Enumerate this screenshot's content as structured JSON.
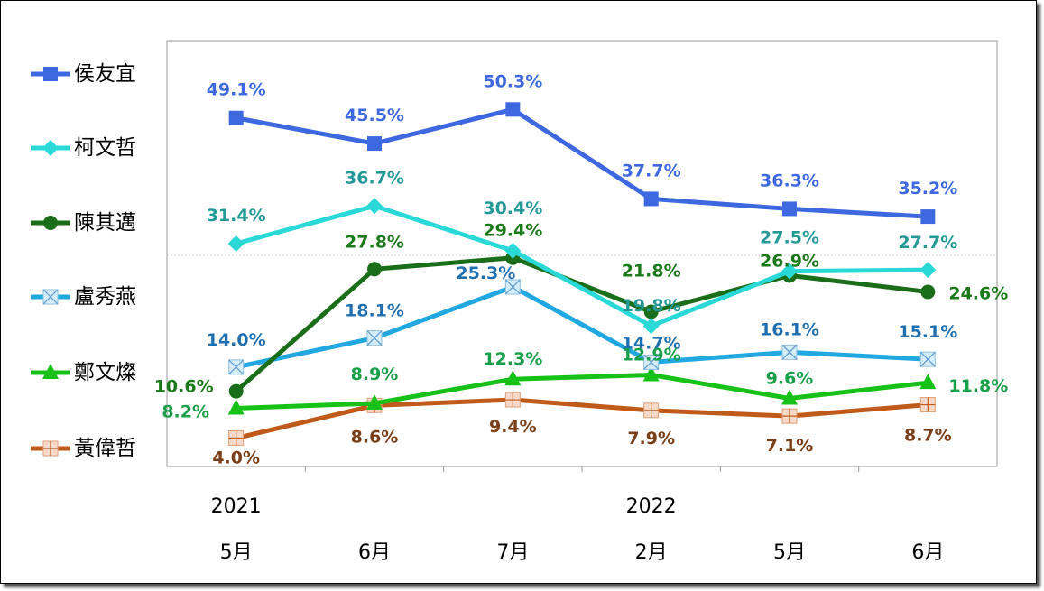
{
  "chart_data": {
    "type": "line",
    "title": "",
    "xlabel": "",
    "ylabel": "",
    "ylim": [
      0,
      60
    ],
    "grid": "vertical separators between categories",
    "legend_placement": "left",
    "year_labels": [
      {
        "text": "2021",
        "index": 0
      },
      {
        "text": "2022",
        "index": 3
      }
    ],
    "categories": [
      "5月",
      "6月",
      "7月",
      "2月",
      "5月",
      "6月"
    ],
    "series": [
      {
        "name": "侯友宜",
        "color": "#3d68e0",
        "label_color": "#3d68e0",
        "marker": "square",
        "values": [
          49.1,
          45.5,
          50.3,
          37.7,
          36.3,
          35.2
        ],
        "labels": [
          "49.1%",
          "45.5%",
          "50.3%",
          "37.7%",
          "36.3%",
          "35.2%"
        ]
      },
      {
        "name": "柯文哲",
        "color": "#2bd8d8",
        "label_color": "#239a98",
        "marker": "diamond",
        "values": [
          31.4,
          36.7,
          30.4,
          19.8,
          27.5,
          27.7
        ],
        "labels": [
          "31.4%",
          "36.7%",
          "30.4%",
          "19.8%",
          "27.5%",
          "27.7%"
        ]
      },
      {
        "name": "陳其邁",
        "color": "#1a6e1a",
        "label_color": "#1a7a1a",
        "marker": "circle",
        "values": [
          10.6,
          27.8,
          29.4,
          21.8,
          26.9,
          24.6
        ],
        "labels": [
          "10.6%",
          "27.8%",
          "29.4%",
          "21.8%",
          "26.9%",
          "24.6%"
        ]
      },
      {
        "name": "盧秀燕",
        "color": "#22a8e0",
        "label_color": "#1f6fb0",
        "marker": "x-square",
        "values": [
          14.0,
          18.1,
          25.3,
          14.7,
          16.1,
          15.1
        ],
        "labels": [
          "14.0%",
          "18.1%",
          "25.3%",
          "14.7%",
          "16.1%",
          "15.1%"
        ]
      },
      {
        "name": "鄭文燦",
        "color": "#17c117",
        "label_color": "#1aa04a",
        "marker": "triangle",
        "values": [
          8.2,
          8.9,
          12.3,
          12.9,
          9.6,
          11.8
        ],
        "labels": [
          "8.2%",
          "8.9%",
          "12.3%",
          "12.9%",
          "9.6%",
          "11.8%"
        ]
      },
      {
        "name": "黃偉哲",
        "color": "#c05a1a",
        "label_color": "#7a3e18",
        "marker": "plus-square",
        "values": [
          4.0,
          8.6,
          9.4,
          7.9,
          7.1,
          8.7
        ],
        "labels": [
          "4.0%",
          "8.6%",
          "9.4%",
          "7.9%",
          "7.1%",
          "8.7%"
        ]
      }
    ]
  }
}
